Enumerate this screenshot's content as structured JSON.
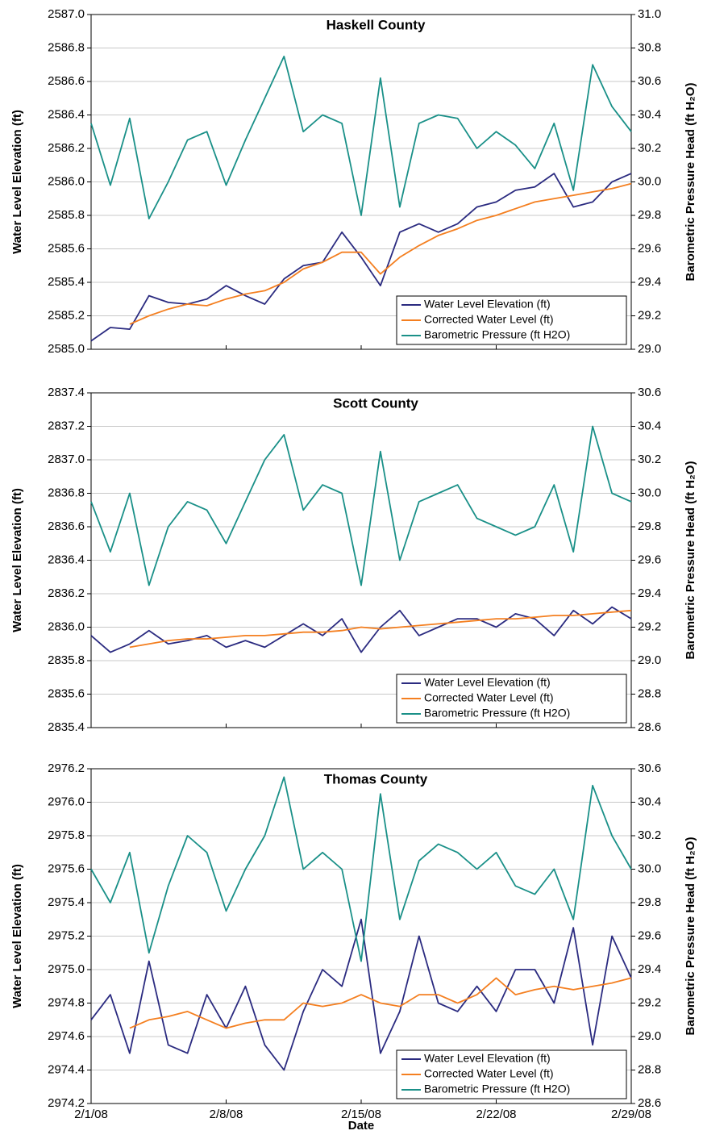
{
  "chart_data": [
    {
      "type": "line",
      "title": "Haskell County",
      "ylabel": "Water Level Elevation (ft)",
      "y2label": "Barometric Pressure Head (ft H₂O)",
      "x": [
        "2/1/08",
        "2/2/08",
        "2/3/08",
        "2/4/08",
        "2/5/08",
        "2/6/08",
        "2/7/08",
        "2/8/08",
        "2/9/08",
        "2/10/08",
        "2/11/08",
        "2/12/08",
        "2/13/08",
        "2/14/08",
        "2/15/08",
        "2/16/08",
        "2/17/08",
        "2/18/08",
        "2/19/08",
        "2/20/08",
        "2/21/08",
        "2/22/08",
        "2/23/08",
        "2/24/08",
        "2/25/08",
        "2/26/08",
        "2/27/08",
        "2/28/08",
        "2/29/08"
      ],
      "xlim": [
        "2/1/08",
        "2/29/08"
      ],
      "xticks": [
        "2/1/08",
        "2/8/08",
        "2/15/08",
        "2/22/08",
        "2/29/08"
      ],
      "xtick_labels": false,
      "ylim": [
        2585,
        2587
      ],
      "yticks": [
        {
          "value": 2585,
          "label": "2585.0"
        },
        2585.2,
        2585.4,
        2585.6,
        2585.8,
        {
          "value": 2586,
          "label": "2586.0"
        },
        2586.2,
        2586.4,
        2586.6,
        2586.8,
        {
          "value": 2587,
          "label": "2587.0"
        }
      ],
      "y2lim": [
        29,
        31
      ],
      "y2ticks": [
        {
          "value": 29,
          "label": "29.0"
        },
        29.2,
        29.4,
        29.6,
        29.8,
        {
          "value": 30,
          "label": "30.0"
        },
        30.2,
        30.4,
        30.6,
        30.8,
        {
          "value": 31,
          "label": "31.0"
        }
      ],
      "grid": true,
      "legend": "lower right",
      "series": [
        {
          "name": "Water Level Elevation (ft)",
          "color": "#2b2b80",
          "values": [
            2585.05,
            2585.13,
            2585.12,
            2585.32,
            2585.28,
            2585.27,
            2585.3,
            2585.38,
            2585.32,
            2585.27,
            2585.42,
            2585.5,
            2585.52,
            2585.7,
            2585.55,
            2585.38,
            2585.7,
            2585.75,
            2585.7,
            2585.75,
            2585.85,
            2585.88,
            2585.95,
            2585.97,
            2586.05,
            2585.85,
            2585.88,
            2586.0,
            2586.05
          ]
        },
        {
          "name": "Corrected Water Level (ft)",
          "color": "#f47f20",
          "values": [
            null,
            null,
            2585.15,
            2585.2,
            2585.24,
            2585.27,
            2585.26,
            2585.3,
            2585.33,
            2585.35,
            2585.4,
            2585.48,
            2585.52,
            2585.58,
            2585.58,
            2585.45,
            2585.55,
            2585.62,
            2585.68,
            2585.72,
            2585.77,
            2585.8,
            2585.84,
            2585.88,
            2585.9,
            2585.92,
            2585.94,
            2585.96,
            2585.99
          ]
        },
        {
          "name": "Barometric Pressure (ft H2O)",
          "color": "#1a9088",
          "axis": "y2",
          "values": [
            30.35,
            29.98,
            30.38,
            29.78,
            30.0,
            30.25,
            30.3,
            29.98,
            30.25,
            30.5,
            30.75,
            30.3,
            30.4,
            30.35,
            29.8,
            30.62,
            29.85,
            30.35,
            30.4,
            30.38,
            30.2,
            30.3,
            30.22,
            30.08,
            30.35,
            29.95,
            30.7,
            30.45,
            30.3
          ]
        }
      ]
    },
    {
      "type": "line",
      "title": "Scott County",
      "ylabel": "Water Level Elevation (ft)",
      "y2label": "Barometric Pressure Head (ft H₂O)",
      "x": [
        "2/1/08",
        "2/2/08",
        "2/3/08",
        "2/4/08",
        "2/5/08",
        "2/6/08",
        "2/7/08",
        "2/8/08",
        "2/9/08",
        "2/10/08",
        "2/11/08",
        "2/12/08",
        "2/13/08",
        "2/14/08",
        "2/15/08",
        "2/16/08",
        "2/17/08",
        "2/18/08",
        "2/19/08",
        "2/20/08",
        "2/21/08",
        "2/22/08",
        "2/23/08",
        "2/24/08",
        "2/25/08",
        "2/26/08",
        "2/27/08",
        "2/28/08",
        "2/29/08"
      ],
      "xlim": [
        "2/1/08",
        "2/29/08"
      ],
      "xticks": [
        "2/1/08",
        "2/8/08",
        "2/15/08",
        "2/22/08",
        "2/29/08"
      ],
      "xtick_labels": false,
      "ylim": [
        2835.4,
        2837.4
      ],
      "yticks": [
        2835.4,
        2835.6,
        2835.8,
        {
          "value": 2836,
          "label": "2836.0"
        },
        2836.2,
        2836.4,
        2836.6,
        2836.8,
        {
          "value": 2837,
          "label": "2837.0"
        },
        2837.2,
        2837.4
      ],
      "y2lim": [
        28.6,
        30.6
      ],
      "y2ticks": [
        28.6,
        28.8,
        {
          "value": 29,
          "label": "29.0"
        },
        29.2,
        29.4,
        29.6,
        29.8,
        {
          "value": 30,
          "label": "30.0"
        },
        30.2,
        30.4,
        30.6
      ],
      "grid": true,
      "legend": "lower right",
      "series": [
        {
          "name": "Water Level Elevation (ft)",
          "color": "#2b2b80",
          "values": [
            2835.95,
            2835.85,
            2835.9,
            2835.98,
            2835.9,
            2835.92,
            2835.95,
            2835.88,
            2835.92,
            2835.88,
            2835.95,
            2836.02,
            2835.95,
            2836.05,
            2835.85,
            2836.0,
            2836.1,
            2835.95,
            2836.0,
            2836.05,
            2836.05,
            2836.0,
            2836.08,
            2836.05,
            2835.95,
            2836.1,
            2836.02,
            2836.12,
            2836.05
          ]
        },
        {
          "name": "Corrected Water Level (ft)",
          "color": "#f47f20",
          "values": [
            null,
            null,
            2835.88,
            2835.9,
            2835.92,
            2835.93,
            2835.93,
            2835.94,
            2835.95,
            2835.95,
            2835.96,
            2835.97,
            2835.97,
            2835.98,
            2836.0,
            2835.99,
            2836.0,
            2836.01,
            2836.02,
            2836.03,
            2836.04,
            2836.05,
            2836.05,
            2836.06,
            2836.07,
            2836.07,
            2836.08,
            2836.09,
            2836.1
          ]
        },
        {
          "name": "Barometric Pressure (ft H2O)",
          "color": "#1a9088",
          "axis": "y2",
          "values": [
            29.95,
            29.65,
            30.0,
            29.45,
            29.8,
            29.95,
            29.9,
            29.7,
            29.95,
            30.2,
            30.35,
            29.9,
            30.05,
            30.0,
            29.45,
            30.25,
            29.6,
            29.95,
            30.0,
            30.05,
            29.85,
            29.8,
            29.75,
            29.8,
            30.05,
            29.65,
            30.4,
            30.0,
            29.95
          ]
        }
      ]
    },
    {
      "type": "line",
      "title": "Thomas County",
      "xlabel": "Date",
      "ylabel": "Water Level Elevation (ft)",
      "y2label": "Barometric Pressure Head (ft H₂O)",
      "x": [
        "2/1/08",
        "2/2/08",
        "2/3/08",
        "2/4/08",
        "2/5/08",
        "2/6/08",
        "2/7/08",
        "2/8/08",
        "2/9/08",
        "2/10/08",
        "2/11/08",
        "2/12/08",
        "2/13/08",
        "2/14/08",
        "2/15/08",
        "2/16/08",
        "2/17/08",
        "2/18/08",
        "2/19/08",
        "2/20/08",
        "2/21/08",
        "2/22/08",
        "2/23/08",
        "2/24/08",
        "2/25/08",
        "2/26/08",
        "2/27/08",
        "2/28/08",
        "2/29/08"
      ],
      "xlim": [
        "2/1/08",
        "2/29/08"
      ],
      "xticks": [
        "2/1/08",
        "2/8/08",
        "2/15/08",
        "2/22/08",
        "2/29/08"
      ],
      "xtick_labels": true,
      "ylim": [
        2974.2,
        2976.2
      ],
      "yticks": [
        2974.2,
        2974.4,
        2974.6,
        2974.8,
        {
          "value": 2975,
          "label": "2975.0"
        },
        2975.2,
        2975.4,
        2975.6,
        2975.8,
        {
          "value": 2976,
          "label": "2976.0"
        },
        2976.2
      ],
      "y2lim": [
        28.6,
        30.6
      ],
      "y2ticks": [
        28.6,
        28.8,
        {
          "value": 29,
          "label": "29.0"
        },
        29.2,
        29.4,
        29.6,
        29.8,
        {
          "value": 30,
          "label": "30.0"
        },
        30.2,
        30.4,
        30.6
      ],
      "grid": true,
      "legend": "lower right",
      "series": [
        {
          "name": "Water Level Elevation (ft)",
          "color": "#2b2b80",
          "values": [
            2974.7,
            2974.85,
            2974.5,
            2975.05,
            2974.55,
            2974.5,
            2974.85,
            2974.65,
            2974.9,
            2974.55,
            2974.4,
            2974.75,
            2975.0,
            2974.9,
            2975.3,
            2974.5,
            2974.75,
            2975.2,
            2974.8,
            2974.75,
            2974.9,
            2974.75,
            2975.0,
            2975.0,
            2974.8,
            2975.25,
            2974.55,
            2975.2,
            2974.95
          ]
        },
        {
          "name": "Corrected Water Level (ft)",
          "color": "#f47f20",
          "values": [
            null,
            null,
            2974.65,
            2974.7,
            2974.72,
            2974.75,
            2974.7,
            2974.65,
            2974.68,
            2974.7,
            2974.7,
            2974.8,
            2974.78,
            2974.8,
            2974.85,
            2974.8,
            2974.78,
            2974.85,
            2974.85,
            2974.8,
            2974.85,
            2974.95,
            2974.85,
            2974.88,
            2974.9,
            2974.88,
            2974.9,
            2974.92,
            2974.95
          ]
        },
        {
          "name": "Barometric Pressure (ft H2O)",
          "color": "#1a9088",
          "axis": "y2",
          "values": [
            30.0,
            29.8,
            30.1,
            29.5,
            29.9,
            30.2,
            30.1,
            29.75,
            30.0,
            30.2,
            30.55,
            30.0,
            30.1,
            30.0,
            29.45,
            30.45,
            29.7,
            30.05,
            30.15,
            30.1,
            30.0,
            30.1,
            29.9,
            29.85,
            30.0,
            29.7,
            30.5,
            30.2,
            30.0
          ]
        }
      ]
    }
  ]
}
